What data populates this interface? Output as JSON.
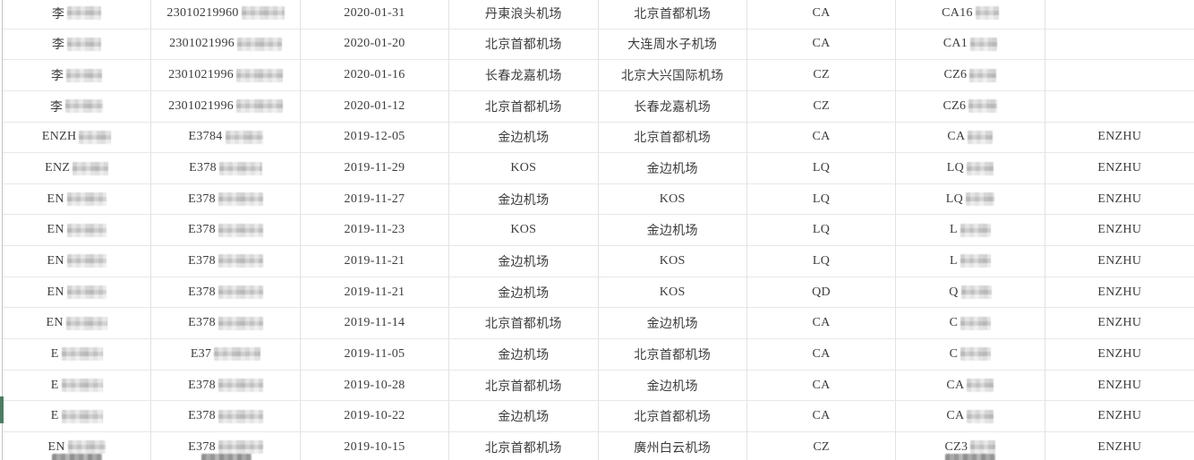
{
  "table": {
    "columns": [
      "passenger-name",
      "id-number",
      "flight-date",
      "departure-airport",
      "arrival-airport",
      "airline-code",
      "flight-number",
      "passenger-name-en"
    ],
    "rows": [
      {
        "c": [
          "李",
          "23010219960",
          "2020-01-31",
          "丹東浪头机场",
          "北京首都机场",
          "CA",
          "CA16",
          ""
        ],
        "b": [
          38,
          48,
          0,
          0,
          0,
          0,
          26,
          0
        ]
      },
      {
        "c": [
          "李",
          "2301021996",
          "2020-01-20",
          "北京首都机场",
          "大连周水子机场",
          "CA",
          "CA1",
          ""
        ],
        "b": [
          38,
          50,
          0,
          0,
          0,
          0,
          30,
          0
        ]
      },
      {
        "c": [
          "李",
          "2301021996",
          "2020-01-16",
          "长春龙嘉机场",
          "北京大兴国际机场",
          "CZ",
          "CZ6",
          ""
        ],
        "b": [
          40,
          52,
          0,
          0,
          0,
          0,
          30,
          0
        ]
      },
      {
        "c": [
          "李",
          "2301021996",
          "2020-01-12",
          "北京首都机场",
          "长春龙嘉机场",
          "CZ",
          "CZ6",
          ""
        ],
        "b": [
          42,
          52,
          0,
          0,
          0,
          0,
          32,
          0
        ]
      },
      {
        "c": [
          "ENZH",
          "E3784",
          "2019-12-05",
          "金边机场",
          "北京首都机场",
          "CA",
          "CA",
          "ENZHU"
        ],
        "b": [
          36,
          42,
          0,
          0,
          0,
          0,
          28,
          0
        ]
      },
      {
        "c": [
          "ENZ",
          "E378",
          "2019-11-29",
          "KOS",
          "金边机场",
          "LQ",
          "LQ",
          "ENZHU"
        ],
        "b": [
          40,
          48,
          0,
          0,
          0,
          0,
          30,
          0
        ]
      },
      {
        "c": [
          "EN",
          "E378",
          "2019-11-27",
          "金边机场",
          "KOS",
          "LQ",
          "LQ",
          "ENZHU"
        ],
        "b": [
          44,
          50,
          0,
          0,
          0,
          0,
          32,
          0
        ]
      },
      {
        "c": [
          "EN",
          "E378",
          "2019-11-23",
          "KOS",
          "金边机场",
          "LQ",
          "L",
          "ENZHU"
        ],
        "b": [
          44,
          50,
          0,
          0,
          0,
          0,
          34,
          0
        ]
      },
      {
        "c": [
          "EN",
          "E378",
          "2019-11-21",
          "金边机场",
          "KOS",
          "LQ",
          "L",
          "ENZHU"
        ],
        "b": [
          44,
          50,
          0,
          0,
          0,
          0,
          34,
          0
        ]
      },
      {
        "c": [
          "EN",
          "E378",
          "2019-11-21",
          "金边机场",
          "KOS",
          "QD",
          "Q",
          "ENZHU"
        ],
        "b": [
          44,
          50,
          0,
          0,
          0,
          0,
          34,
          0
        ]
      },
      {
        "c": [
          "EN",
          "E378",
          "2019-11-14",
          "北京首都机场",
          "金边机场",
          "CA",
          "C",
          "ENZHU"
        ],
        "b": [
          46,
          50,
          0,
          0,
          0,
          0,
          34,
          0
        ]
      },
      {
        "c": [
          "E",
          "E37",
          "2019-11-05",
          "金边机场",
          "北京首都机场",
          "CA",
          "C",
          "ENZHU"
        ],
        "b": [
          46,
          52,
          0,
          0,
          0,
          0,
          34,
          0
        ]
      },
      {
        "c": [
          "E",
          "E378",
          "2019-10-28",
          "北京首都机场",
          "金边机场",
          "CA",
          "CA",
          "ENZHU"
        ],
        "b": [
          46,
          50,
          0,
          0,
          0,
          0,
          30,
          0
        ]
      },
      {
        "c": [
          "E",
          "E378",
          "2019-10-22",
          "金边机场",
          "北京首都机场",
          "CA",
          "CA",
          "ENZHU"
        ],
        "b": [
          46,
          50,
          0,
          0,
          0,
          0,
          30,
          0
        ]
      },
      {
        "c": [
          "EN",
          "E378",
          "2019-10-15",
          "北京首都机场",
          "廣州白云机场",
          "CZ",
          "CZ3",
          "ENZHU"
        ],
        "b": [
          42,
          50,
          0,
          0,
          0,
          0,
          28,
          0
        ]
      }
    ],
    "bottom_peek_cols": [
      0,
      1,
      6
    ],
    "colors": {
      "grid_line": "#e7e7e7",
      "column_line": "#e2e2e2",
      "left_border": "#c3c3c3",
      "row_marker_green": "#4c7b64",
      "text": "#3c3c3c"
    }
  }
}
